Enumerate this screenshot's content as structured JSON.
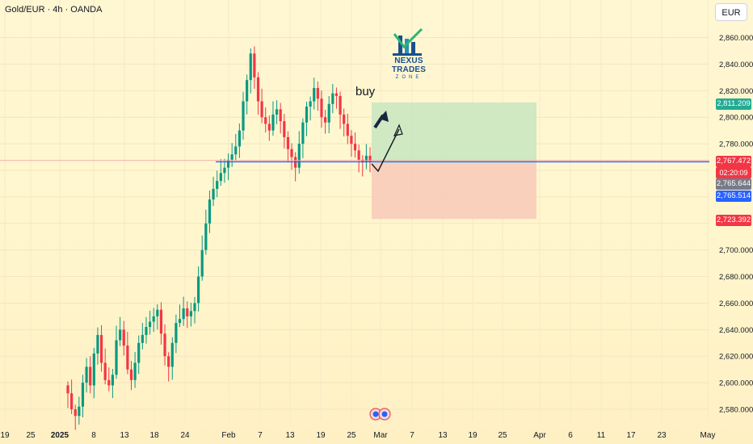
{
  "header": {
    "symbol": "Gold/EUR · 4h · OANDA",
    "currency_button": "EUR"
  },
  "logo": {
    "title": "NEXUS TRADES",
    "subtitle": "ZONE"
  },
  "annotation": {
    "buy_label": "buy"
  },
  "price_badges": {
    "target": "2,811.209",
    "last": "2,767.472",
    "countdown": "02:20:09",
    "mid": "2,765.644",
    "entry": "2,765.514",
    "stop": "2,723.392"
  },
  "colors": {
    "profit_zone": "#c8e6c0",
    "loss_zone": "#f8c9b8",
    "up_candle": "#089981",
    "down_candle": "#f23645",
    "entry_line": "#2962ff",
    "badge_target": "#22ab94",
    "badge_last": "#f23645",
    "badge_mid": "#787b86",
    "badge_entry": "#2962ff",
    "badge_stop": "#f23645"
  },
  "chart_data": {
    "type": "candlestick",
    "y_unit": "EUR",
    "yticks": [
      2580,
      2600,
      2620,
      2640,
      2660,
      2680,
      2700,
      2720,
      2740,
      2760,
      2780,
      2800,
      2820,
      2840,
      2860
    ],
    "ylim": [
      2566,
      2870
    ],
    "xtick_labels": [
      "19",
      "25",
      "2025",
      "8",
      "13",
      "18",
      "24",
      "Feb",
      "7",
      "13",
      "19",
      "25",
      "Mar",
      "7",
      "13",
      "19",
      "25",
      "Apr",
      "6",
      "11",
      "17",
      "23",
      "May"
    ],
    "last_price": 2767.472,
    "entry_price": 2765.514,
    "target_price": 2811.209,
    "stop_price": 2723.392,
    "close_path": [
      2592,
      2580,
      2575,
      2582,
      2600,
      2612,
      2598,
      2622,
      2636,
      2615,
      2602,
      2598,
      2606,
      2632,
      2640,
      2628,
      2610,
      2602,
      2615,
      2630,
      2636,
      2642,
      2646,
      2650,
      2655,
      2637,
      2620,
      2612,
      2630,
      2645,
      2648,
      2656,
      2650,
      2654,
      2660,
      2680,
      2700,
      2720,
      2738,
      2746,
      2752,
      2758,
      2762,
      2768,
      2772,
      2778,
      2790,
      2812,
      2828,
      2848,
      2830,
      2812,
      2800,
      2795,
      2790,
      2802,
      2806,
      2797,
      2785,
      2776,
      2770,
      2762,
      2780,
      2796,
      2808,
      2812,
      2822,
      2814,
      2800,
      2796,
      2810,
      2818,
      2816,
      2802,
      2795,
      2786,
      2780,
      2775,
      2768,
      2766,
      2771,
      2766
    ]
  }
}
